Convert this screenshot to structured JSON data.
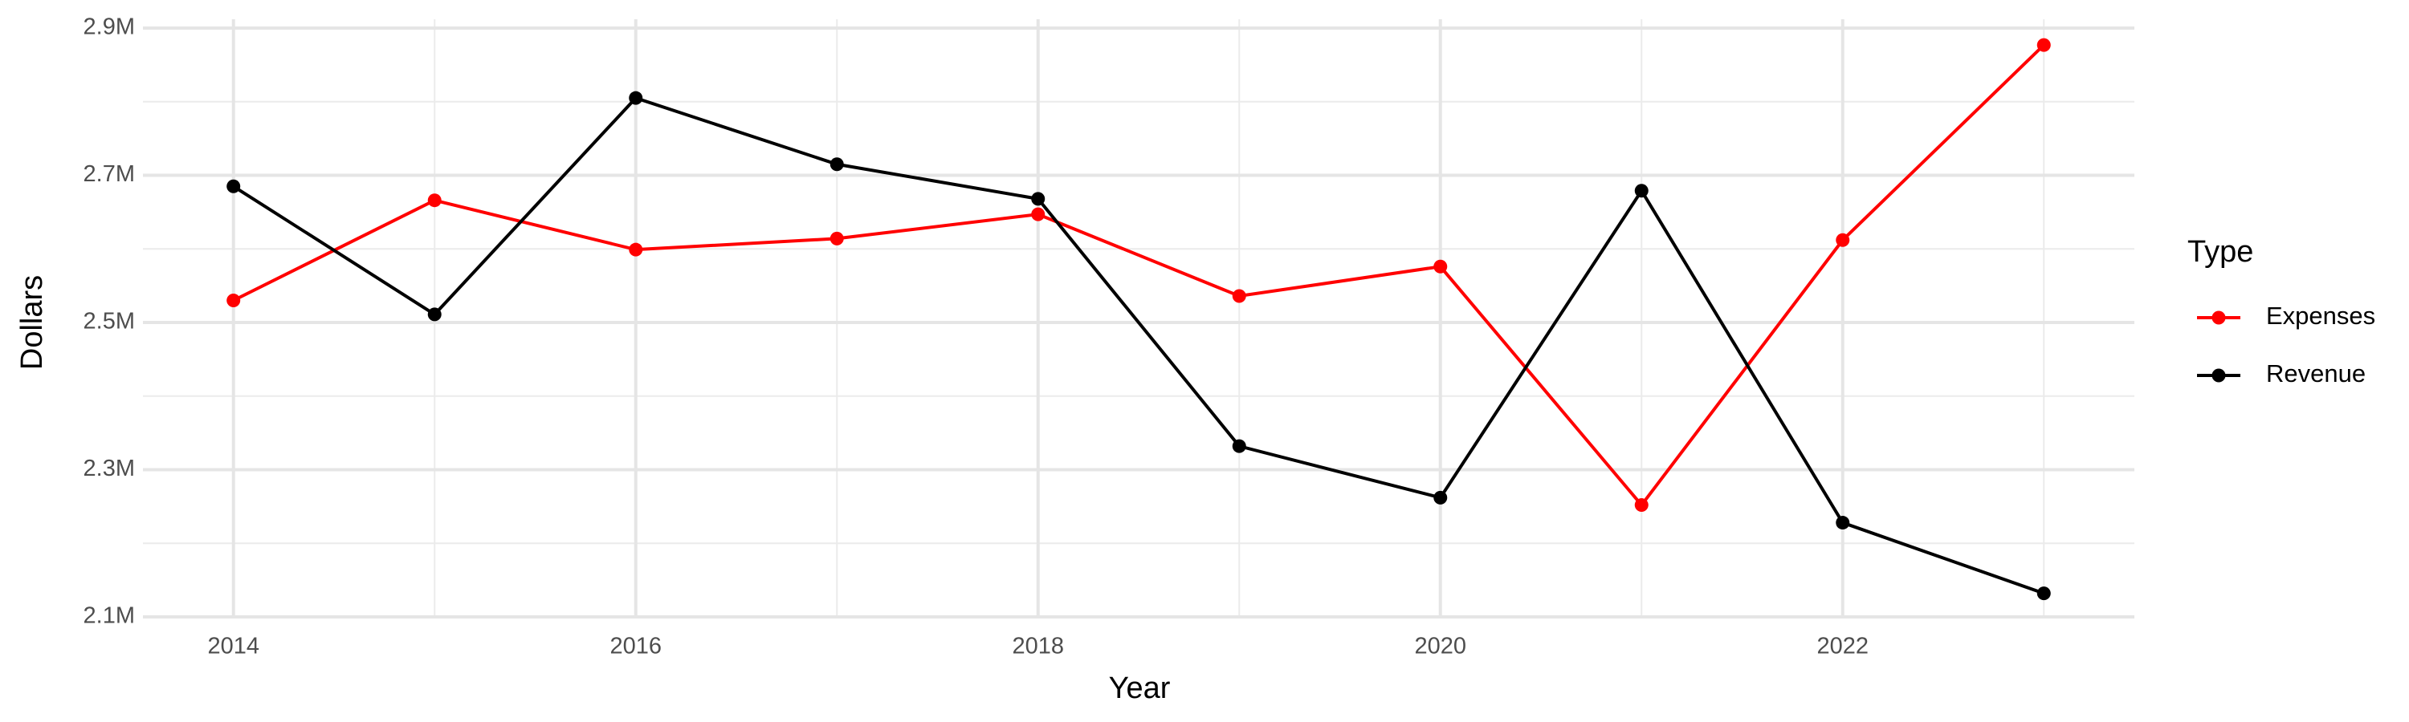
{
  "chart_data": {
    "type": "line",
    "x": [
      2014,
      2015,
      2016,
      2017,
      2018,
      2019,
      2020,
      2021,
      2022,
      2023
    ],
    "series": [
      {
        "name": "Expenses",
        "color": "#ff0000",
        "values": [
          2530000,
          2666000,
          2599000,
          2614000,
          2647000,
          2536000,
          2576000,
          2252000,
          2612000,
          2877000
        ]
      },
      {
        "name": "Revenue",
        "color": "#000000",
        "values": [
          2685000,
          2511000,
          2805000,
          2715000,
          2668000,
          2332000,
          2262000,
          2679000,
          2228000,
          2132000
        ]
      }
    ],
    "x_label": "Year",
    "y_label": "Dollars",
    "legend_title": "Type",
    "legend_position": "right",
    "xlim": [
      2013.55,
      2023.45
    ],
    "xticks": [
      2014,
      2016,
      2018,
      2020,
      2022
    ],
    "minor_xticks": [
      2015,
      2017,
      2019,
      2021,
      2023
    ],
    "ylim": [
      2100000,
      2912000
    ],
    "yticks": [
      {
        "value": 2100000,
        "label": "2.1M"
      },
      {
        "value": 2300000,
        "label": "2.3M"
      },
      {
        "value": 2500000,
        "label": "2.5M"
      },
      {
        "value": 2700000,
        "label": "2.7M"
      },
      {
        "value": 2900000,
        "label": "2.9M"
      }
    ],
    "minor_yticks": [
      2200000,
      2400000,
      2600000,
      2800000
    ],
    "grid": true,
    "markers": true
  }
}
